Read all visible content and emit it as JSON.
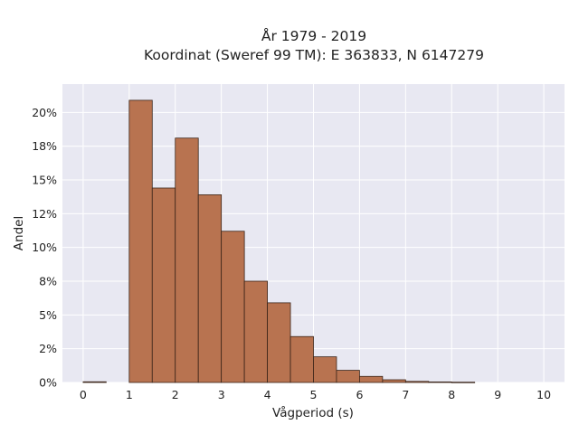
{
  "chart_data": {
    "type": "bar",
    "title_line1": "År 1979 - 2019",
    "title_line2": "Koordinat (Sweref 99 TM): E 363833, N 6147279",
    "xlabel": "Vågperiod (s)",
    "ylabel": "Andel",
    "bin_width": 0.5,
    "bin_starts": [
      0,
      0.5,
      1,
      1.5,
      2,
      2.5,
      3,
      3.5,
      4,
      4.5,
      5,
      5.5,
      6,
      6.5,
      7,
      7.5,
      8,
      8.5,
      9,
      9.5
    ],
    "values": [
      0.05,
      0,
      20.9,
      14.4,
      18.1,
      13.9,
      11.2,
      7.5,
      5.9,
      3.4,
      1.9,
      0.9,
      0.45,
      0.2,
      0.08,
      0.04,
      0.02,
      0,
      0,
      0
    ],
    "xlim": [
      -0.45,
      10.45
    ],
    "ylim": [
      0,
      22.1
    ],
    "x_ticks": [
      0,
      1,
      2,
      3,
      4,
      5,
      6,
      7,
      8,
      9,
      10
    ],
    "x_tick_labels": [
      "0",
      "1",
      "2",
      "3",
      "4",
      "5",
      "6",
      "7",
      "8",
      "9",
      "10"
    ],
    "y_ticks": [
      0,
      2.5,
      5,
      7.5,
      10,
      12.5,
      15,
      17.5,
      20
    ],
    "y_tick_labels": [
      "0%",
      "2%",
      "5%",
      "8%",
      "10%",
      "12%",
      "15%",
      "18%",
      "20%"
    ],
    "grid": true,
    "colors": {
      "bar": "#b87350",
      "bar_edge": "#3a2418",
      "plot_bg": "#e8e8f2",
      "grid": "#ffffff"
    }
  }
}
